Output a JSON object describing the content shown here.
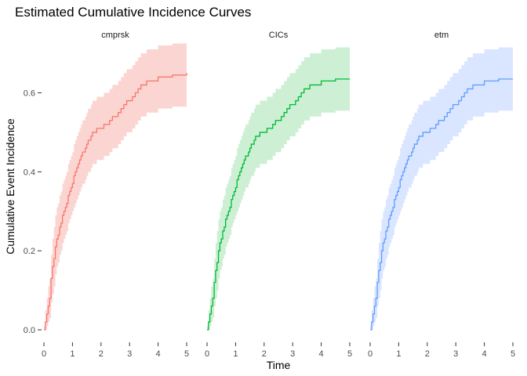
{
  "chart_data": {
    "type": "line",
    "title": "Estimated Cumulative Incidence Curves",
    "xlabel": "Time",
    "ylabel": "Cumulative Event Incidence",
    "xlim": [
      0,
      5
    ],
    "ylim": [
      0,
      0.72
    ],
    "x_ticks": [
      0,
      1,
      2,
      3,
      4,
      5
    ],
    "x_tick_labels": [
      "0",
      "1",
      "2",
      "3",
      "4",
      "5"
    ],
    "y_ticks": [
      0,
      0.2,
      0.4,
      0.6
    ],
    "y_tick_labels": [
      "0.0",
      "0.2",
      "0.4",
      "0.6"
    ],
    "grid": false,
    "legend": "none",
    "panels": [
      {
        "label": "cmprsk",
        "color": "#F8766D",
        "band_color": "#FBD5D1",
        "x": [
          0,
          0.05,
          0.1,
          0.15,
          0.2,
          0.25,
          0.3,
          0.35,
          0.4,
          0.45,
          0.5,
          0.55,
          0.6,
          0.65,
          0.7,
          0.75,
          0.8,
          0.85,
          0.9,
          0.95,
          1.0,
          1.05,
          1.1,
          1.15,
          1.2,
          1.25,
          1.3,
          1.35,
          1.4,
          1.45,
          1.5,
          1.55,
          1.6,
          1.65,
          1.7,
          1.75,
          1.8,
          1.85,
          1.9,
          2.0,
          2.1,
          2.2,
          2.3,
          2.4,
          2.5,
          2.6,
          2.7,
          2.8,
          2.9,
          3.0,
          3.1,
          3.2,
          3.3,
          3.4,
          3.5,
          3.6,
          4.0,
          4.5,
          5.0
        ],
        "y": [
          0,
          0.02,
          0.04,
          0.06,
          0.08,
          0.13,
          0.16,
          0.18,
          0.21,
          0.23,
          0.24,
          0.26,
          0.27,
          0.29,
          0.3,
          0.31,
          0.32,
          0.34,
          0.35,
          0.36,
          0.37,
          0.39,
          0.4,
          0.41,
          0.42,
          0.43,
          0.44,
          0.45,
          0.45,
          0.46,
          0.47,
          0.48,
          0.48,
          0.49,
          0.5,
          0.5,
          0.5,
          0.51,
          0.51,
          0.51,
          0.52,
          0.52,
          0.53,
          0.54,
          0.54,
          0.55,
          0.56,
          0.57,
          0.58,
          0.58,
          0.59,
          0.6,
          0.61,
          0.62,
          0.62,
          0.63,
          0.64,
          0.645,
          0.65
        ],
        "lower": [
          0,
          0,
          0.01,
          0.02,
          0.03,
          0.07,
          0.09,
          0.11,
          0.14,
          0.16,
          0.17,
          0.19,
          0.2,
          0.22,
          0.23,
          0.24,
          0.25,
          0.27,
          0.28,
          0.29,
          0.3,
          0.31,
          0.32,
          0.33,
          0.34,
          0.35,
          0.36,
          0.37,
          0.37,
          0.38,
          0.39,
          0.4,
          0.4,
          0.41,
          0.42,
          0.42,
          0.42,
          0.43,
          0.43,
          0.43,
          0.44,
          0.44,
          0.45,
          0.46,
          0.46,
          0.47,
          0.48,
          0.49,
          0.5,
          0.5,
          0.51,
          0.52,
          0.53,
          0.54,
          0.54,
          0.55,
          0.56,
          0.565,
          0.565
        ],
        "upper": [
          0.01,
          0.05,
          0.08,
          0.11,
          0.13,
          0.19,
          0.23,
          0.26,
          0.29,
          0.31,
          0.32,
          0.34,
          0.35,
          0.37,
          0.38,
          0.39,
          0.4,
          0.42,
          0.43,
          0.44,
          0.45,
          0.47,
          0.48,
          0.49,
          0.5,
          0.51,
          0.52,
          0.53,
          0.53,
          0.54,
          0.55,
          0.56,
          0.56,
          0.57,
          0.58,
          0.58,
          0.58,
          0.59,
          0.59,
          0.59,
          0.6,
          0.6,
          0.61,
          0.62,
          0.62,
          0.63,
          0.64,
          0.65,
          0.66,
          0.66,
          0.67,
          0.68,
          0.69,
          0.7,
          0.7,
          0.71,
          0.72,
          0.725,
          0.73
        ]
      },
      {
        "label": "CICs",
        "color": "#00BA38",
        "band_color": "#CDEFD4",
        "x": [
          0,
          0.05,
          0.1,
          0.15,
          0.2,
          0.25,
          0.3,
          0.35,
          0.4,
          0.45,
          0.5,
          0.55,
          0.6,
          0.65,
          0.7,
          0.75,
          0.8,
          0.85,
          0.9,
          0.95,
          1.0,
          1.05,
          1.1,
          1.15,
          1.2,
          1.25,
          1.3,
          1.35,
          1.4,
          1.45,
          1.5,
          1.55,
          1.6,
          1.65,
          1.7,
          1.75,
          1.8,
          1.85,
          1.9,
          2.0,
          2.1,
          2.2,
          2.3,
          2.4,
          2.5,
          2.6,
          2.7,
          2.8,
          2.9,
          3.0,
          3.1,
          3.2,
          3.3,
          3.4,
          3.5,
          3.6,
          4.0,
          4.5,
          5.0
        ],
        "y": [
          0,
          0.02,
          0.04,
          0.06,
          0.08,
          0.12,
          0.15,
          0.17,
          0.2,
          0.22,
          0.23,
          0.25,
          0.26,
          0.28,
          0.29,
          0.3,
          0.31,
          0.33,
          0.34,
          0.35,
          0.36,
          0.38,
          0.39,
          0.4,
          0.41,
          0.42,
          0.43,
          0.44,
          0.44,
          0.45,
          0.46,
          0.47,
          0.47,
          0.48,
          0.49,
          0.49,
          0.49,
          0.5,
          0.5,
          0.5,
          0.51,
          0.51,
          0.52,
          0.53,
          0.53,
          0.54,
          0.55,
          0.56,
          0.57,
          0.57,
          0.58,
          0.59,
          0.6,
          0.61,
          0.61,
          0.62,
          0.63,
          0.635,
          0.635
        ],
        "lower": [
          0,
          0,
          0.01,
          0.02,
          0.03,
          0.06,
          0.08,
          0.1,
          0.13,
          0.15,
          0.16,
          0.18,
          0.19,
          0.21,
          0.22,
          0.23,
          0.24,
          0.26,
          0.27,
          0.28,
          0.29,
          0.3,
          0.31,
          0.32,
          0.33,
          0.34,
          0.35,
          0.36,
          0.36,
          0.37,
          0.38,
          0.39,
          0.39,
          0.4,
          0.41,
          0.41,
          0.41,
          0.42,
          0.42,
          0.42,
          0.43,
          0.43,
          0.44,
          0.45,
          0.45,
          0.46,
          0.47,
          0.48,
          0.49,
          0.49,
          0.5,
          0.51,
          0.52,
          0.53,
          0.53,
          0.54,
          0.55,
          0.555,
          0.555
        ],
        "upper": [
          0.01,
          0.05,
          0.08,
          0.11,
          0.13,
          0.18,
          0.22,
          0.25,
          0.28,
          0.3,
          0.31,
          0.33,
          0.34,
          0.36,
          0.37,
          0.38,
          0.39,
          0.41,
          0.42,
          0.43,
          0.44,
          0.46,
          0.47,
          0.48,
          0.49,
          0.5,
          0.51,
          0.52,
          0.52,
          0.53,
          0.54,
          0.55,
          0.55,
          0.56,
          0.57,
          0.57,
          0.57,
          0.58,
          0.58,
          0.58,
          0.59,
          0.59,
          0.6,
          0.61,
          0.61,
          0.62,
          0.63,
          0.64,
          0.65,
          0.65,
          0.66,
          0.67,
          0.68,
          0.69,
          0.69,
          0.7,
          0.71,
          0.715,
          0.715
        ]
      },
      {
        "label": "etm",
        "color": "#619CFF",
        "band_color": "#DAE6FF",
        "x": [
          0,
          0.05,
          0.1,
          0.15,
          0.2,
          0.25,
          0.3,
          0.35,
          0.4,
          0.45,
          0.5,
          0.55,
          0.6,
          0.65,
          0.7,
          0.75,
          0.8,
          0.85,
          0.9,
          0.95,
          1.0,
          1.05,
          1.1,
          1.15,
          1.2,
          1.25,
          1.3,
          1.35,
          1.4,
          1.45,
          1.5,
          1.55,
          1.6,
          1.65,
          1.7,
          1.75,
          1.8,
          1.85,
          1.9,
          2.0,
          2.1,
          2.2,
          2.3,
          2.4,
          2.5,
          2.6,
          2.7,
          2.8,
          2.9,
          3.0,
          3.1,
          3.2,
          3.3,
          3.4,
          3.5,
          3.6,
          4.0,
          4.5,
          5.0
        ],
        "y": [
          0,
          0.02,
          0.04,
          0.06,
          0.08,
          0.12,
          0.15,
          0.17,
          0.2,
          0.22,
          0.23,
          0.25,
          0.26,
          0.28,
          0.29,
          0.3,
          0.31,
          0.33,
          0.34,
          0.35,
          0.36,
          0.38,
          0.39,
          0.4,
          0.41,
          0.42,
          0.43,
          0.44,
          0.44,
          0.45,
          0.46,
          0.47,
          0.47,
          0.48,
          0.49,
          0.49,
          0.49,
          0.5,
          0.5,
          0.5,
          0.51,
          0.51,
          0.52,
          0.53,
          0.53,
          0.54,
          0.55,
          0.56,
          0.57,
          0.57,
          0.58,
          0.59,
          0.6,
          0.61,
          0.61,
          0.62,
          0.63,
          0.635,
          0.635
        ],
        "lower": [
          0,
          0,
          0.01,
          0.02,
          0.03,
          0.06,
          0.08,
          0.1,
          0.13,
          0.15,
          0.16,
          0.18,
          0.19,
          0.21,
          0.22,
          0.23,
          0.24,
          0.26,
          0.27,
          0.28,
          0.29,
          0.3,
          0.31,
          0.32,
          0.33,
          0.34,
          0.35,
          0.36,
          0.36,
          0.37,
          0.38,
          0.39,
          0.39,
          0.4,
          0.41,
          0.41,
          0.41,
          0.42,
          0.42,
          0.42,
          0.43,
          0.43,
          0.44,
          0.45,
          0.45,
          0.46,
          0.47,
          0.48,
          0.49,
          0.49,
          0.5,
          0.51,
          0.52,
          0.53,
          0.53,
          0.54,
          0.55,
          0.555,
          0.555
        ],
        "upper": [
          0.01,
          0.05,
          0.08,
          0.11,
          0.13,
          0.18,
          0.22,
          0.25,
          0.28,
          0.3,
          0.31,
          0.33,
          0.34,
          0.36,
          0.37,
          0.38,
          0.39,
          0.41,
          0.42,
          0.43,
          0.44,
          0.46,
          0.47,
          0.48,
          0.49,
          0.5,
          0.51,
          0.52,
          0.52,
          0.53,
          0.54,
          0.55,
          0.55,
          0.56,
          0.57,
          0.57,
          0.57,
          0.58,
          0.58,
          0.58,
          0.59,
          0.59,
          0.6,
          0.61,
          0.61,
          0.62,
          0.63,
          0.64,
          0.65,
          0.65,
          0.66,
          0.67,
          0.68,
          0.69,
          0.69,
          0.7,
          0.71,
          0.715,
          0.715
        ]
      }
    ]
  }
}
